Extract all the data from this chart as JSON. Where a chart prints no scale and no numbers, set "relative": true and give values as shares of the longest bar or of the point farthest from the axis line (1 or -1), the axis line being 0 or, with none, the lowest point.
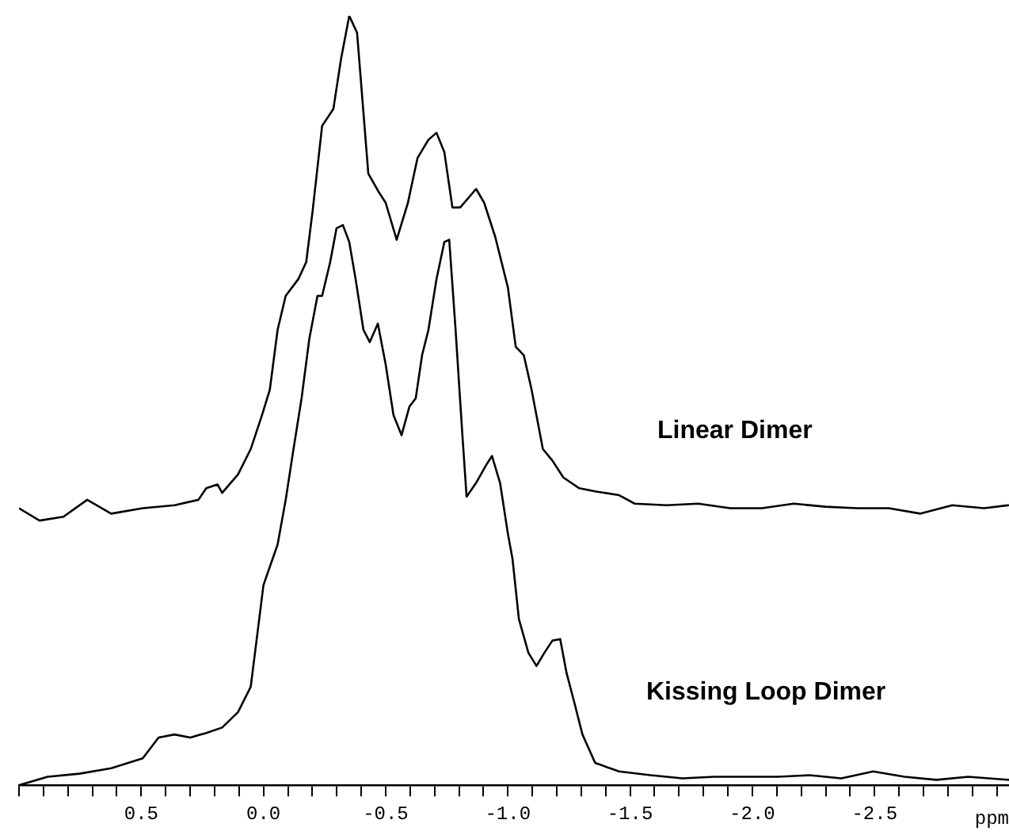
{
  "chart_data": {
    "type": "line",
    "relative": true,
    "xlabel": "ppm",
    "xlim": [
      1.0,
      -3.05
    ],
    "xticks": [
      {
        "value": 1.0,
        "label": null
      },
      {
        "value": 0.9,
        "label": null
      },
      {
        "value": 0.8,
        "label": null
      },
      {
        "value": 0.7,
        "label": null
      },
      {
        "value": 0.6,
        "label": null
      },
      {
        "value": 0.5,
        "label": "0.5"
      },
      {
        "value": 0.4,
        "label": null
      },
      {
        "value": 0.3,
        "label": null
      },
      {
        "value": 0.2,
        "label": null
      },
      {
        "value": 0.1,
        "label": null
      },
      {
        "value": 0,
        "label": "0.0"
      },
      {
        "value": -0.1,
        "label": null
      },
      {
        "value": -0.2,
        "label": null
      },
      {
        "value": -0.3,
        "label": null
      },
      {
        "value": -0.4,
        "label": null
      },
      {
        "value": -0.5,
        "label": "-0.5"
      },
      {
        "value": -0.6,
        "label": null
      },
      {
        "value": -0.7,
        "label": null
      },
      {
        "value": -0.8,
        "label": null
      },
      {
        "value": -0.9,
        "label": null
      },
      {
        "value": -1.0,
        "label": "-1.0"
      },
      {
        "value": -1.1,
        "label": null
      },
      {
        "value": -1.2,
        "label": null
      },
      {
        "value": -1.3,
        "label": null
      },
      {
        "value": -1.4,
        "label": null
      },
      {
        "value": -1.5,
        "label": "-1.5"
      },
      {
        "value": -1.6,
        "label": null
      },
      {
        "value": -1.7,
        "label": null
      },
      {
        "value": -1.8,
        "label": null
      },
      {
        "value": -1.9,
        "label": null
      },
      {
        "value": -2.0,
        "label": "-2.0"
      },
      {
        "value": -2.1,
        "label": null
      },
      {
        "value": -2.2,
        "label": null
      },
      {
        "value": -2.3,
        "label": null
      },
      {
        "value": -2.4,
        "label": null
      },
      {
        "value": -2.5,
        "label": "-2.5"
      },
      {
        "value": -2.6,
        "label": null
      },
      {
        "value": -2.7,
        "label": null
      },
      {
        "value": -2.8,
        "label": null
      },
      {
        "value": -2.9,
        "label": null
      },
      {
        "value": -3.0,
        "label": null
      }
    ],
    "tick_labels": "x",
    "grid": false,
    "legend": false,
    "marker": "none",
    "line_style": "solid",
    "series": [
      {
        "name": "Linear Dimer",
        "color": "#000000",
        "x": [
          1.0,
          0.916,
          0.818,
          0.721,
          0.623,
          0.494,
          0.364,
          0.266,
          0.234,
          0.188,
          0.169,
          0.104,
          0.052,
          0.006,
          -0.026,
          -0.058,
          -0.091,
          -0.143,
          -0.175,
          -0.201,
          -0.24,
          -0.286,
          -0.318,
          -0.351,
          -0.383,
          -0.429,
          -0.468,
          -0.5,
          -0.545,
          -0.591,
          -0.63,
          -0.675,
          -0.708,
          -0.74,
          -0.773,
          -0.805,
          -0.87,
          -0.903,
          -0.948,
          -1.0,
          -1.032,
          -1.065,
          -1.097,
          -1.143,
          -1.182,
          -1.227,
          -1.292,
          -1.357,
          -1.455,
          -1.519,
          -1.649,
          -1.779,
          -1.909,
          -2.039,
          -2.169,
          -2.299,
          -2.429,
          -2.558,
          -2.688,
          -2.818,
          -2.948,
          -3.05
        ],
        "values": [
          0.36,
          0.344,
          0.349,
          0.371,
          0.353,
          0.36,
          0.364,
          0.371,
          0.386,
          0.391,
          0.38,
          0.404,
          0.437,
          0.481,
          0.514,
          0.592,
          0.636,
          0.658,
          0.68,
          0.746,
          0.857,
          0.879,
          0.945,
          1,
          0.978,
          0.795,
          0.773,
          0.757,
          0.709,
          0.757,
          0.815,
          0.839,
          0.848,
          0.823,
          0.751,
          0.751,
          0.775,
          0.757,
          0.713,
          0.647,
          0.57,
          0.559,
          0.514,
          0.437,
          0.422,
          0.4,
          0.386,
          0.382,
          0.377,
          0.366,
          0.364,
          0.366,
          0.36,
          0.36,
          0.366,
          0.362,
          0.36,
          0.36,
          0.353,
          0.364,
          0.36,
          0.364
        ]
      },
      {
        "name": "Kissing Loop Dimer",
        "color": "#000000",
        "x": [
          1.0,
          0.883,
          0.753,
          0.623,
          0.494,
          0.429,
          0.364,
          0.299,
          0.234,
          0.169,
          0.104,
          0.052,
          0.026,
          0,
          -0.058,
          -0.091,
          -0.123,
          -0.156,
          -0.188,
          -0.221,
          -0.24,
          -0.273,
          -0.299,
          -0.325,
          -0.351,
          -0.377,
          -0.409,
          -0.435,
          -0.468,
          -0.5,
          -0.532,
          -0.565,
          -0.597,
          -0.623,
          -0.649,
          -0.675,
          -0.708,
          -0.74,
          -0.76,
          -0.786,
          -0.812,
          -0.831,
          -0.87,
          -0.909,
          -0.935,
          -0.968,
          -1.0,
          -1.019,
          -1.045,
          -1.084,
          -1.117,
          -1.149,
          -1.182,
          -1.214,
          -1.24,
          -1.273,
          -1.305,
          -1.357,
          -1.455,
          -1.584,
          -1.714,
          -1.844,
          -1.974,
          -2.104,
          -2.234,
          -2.364,
          -2.494,
          -2.623,
          -2.753,
          -2.883,
          -3.05
        ],
        "values": [
          0,
          0.011,
          0.015,
          0.022,
          0.035,
          0.062,
          0.066,
          0.062,
          0.068,
          0.075,
          0.095,
          0.128,
          0.194,
          0.26,
          0.313,
          0.371,
          0.437,
          0.503,
          0.581,
          0.636,
          0.636,
          0.68,
          0.724,
          0.728,
          0.706,
          0.658,
          0.592,
          0.576,
          0.6,
          0.547,
          0.481,
          0.455,
          0.492,
          0.503,
          0.559,
          0.592,
          0.658,
          0.706,
          0.709,
          0.592,
          0.464,
          0.375,
          0.393,
          0.415,
          0.428,
          0.393,
          0.327,
          0.294,
          0.216,
          0.172,
          0.155,
          0.172,
          0.188,
          0.19,
          0.146,
          0.106,
          0.066,
          0.029,
          0.018,
          0.013,
          0.009,
          0.011,
          0.011,
          0.011,
          0.013,
          0.009,
          0.018,
          0.011,
          0.007,
          0.011,
          0.007
        ]
      }
    ]
  }
}
